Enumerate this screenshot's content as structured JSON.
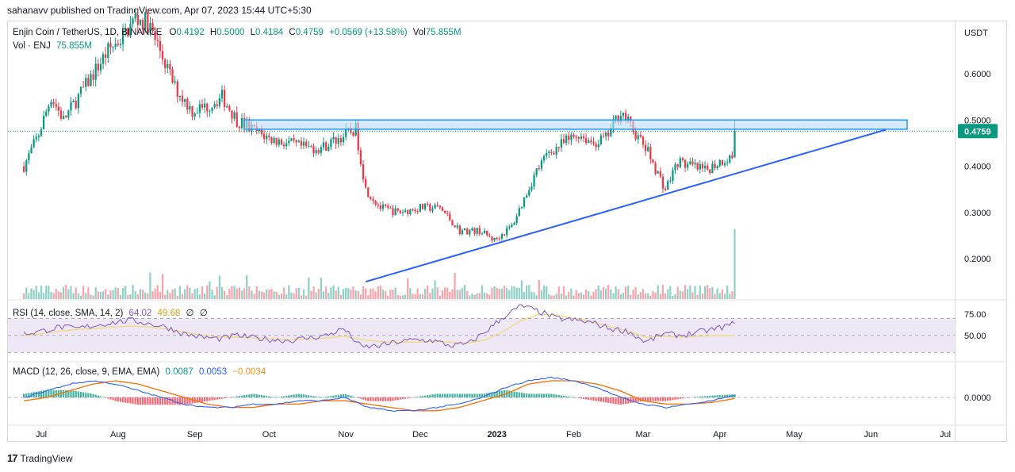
{
  "header": {
    "published": "sahanavv published on TradingView.com, Apr 07, 2023 15:44 UTC+5:30"
  },
  "legend": {
    "symbol": "Enjin Coin / TetherUS, 1D, BINANCE",
    "open_label": "O",
    "open": "0.4192",
    "high_label": "H",
    "high": "0.5000",
    "low_label": "L",
    "low": "0.4184",
    "close_label": "C",
    "close": "0.4759",
    "change": "+0.0569 (+13.58%)",
    "vol_label": "Vol",
    "vol": "75.855M",
    "vol_line_label": "Vol · ENJ",
    "vol_line_value": "75.855M"
  },
  "rsi_legend": {
    "label": "RSI (14, close, SMA, 14, 2)",
    "value": "64.02",
    "sma": "49.68",
    "extra1": "∅",
    "extra2": "∅"
  },
  "macd_legend": {
    "label": "MACD (12, 26, close, 9, EMA, EMA)",
    "hist": "0.0087",
    "macd": "0.0053",
    "signal": "−0.0034"
  },
  "axis": {
    "currency": "USDT",
    "last_price": "0.4759"
  },
  "brand": {
    "logo": "17",
    "name": "TradingView"
  },
  "colors": {
    "up": "#089981",
    "down": "#f23645",
    "resistance_fill": "#bbdefb",
    "resistance_stroke": "#2196f3",
    "trendline": "#2962ff",
    "rsi_line": "#7e57c2",
    "rsi_sma": "#f5d76e",
    "rsi_band": "#ede7f6",
    "macd_line": "#2962ff",
    "signal_line": "#ff6d00"
  },
  "chart_data": [
    {
      "type": "candlestick",
      "title": "Enjin Coin / TetherUS, 1D, BINANCE",
      "y_ticks": [
        "0.6000",
        "0.5000",
        "0.4000",
        "0.3000",
        "0.2000"
      ],
      "y_tick_values": [
        0.6,
        0.5,
        0.4,
        0.3,
        0.2
      ],
      "x_ticks": [
        "Jul",
        "Aug",
        "Sep",
        "Oct",
        "Nov",
        "Dec",
        "2023",
        "Feb",
        "Mar",
        "Apr",
        "May",
        "Jun",
        "Jul"
      ],
      "ylim": [
        0.1,
        0.7
      ],
      "close_path": [
        [
          "2022-06-24",
          0.4
        ],
        [
          "2022-06-30",
          0.47
        ],
        [
          "2022-07-05",
          0.55
        ],
        [
          "2022-07-10",
          0.5
        ],
        [
          "2022-07-16",
          0.55
        ],
        [
          "2022-07-22",
          0.6
        ],
        [
          "2022-07-28",
          0.65
        ],
        [
          "2022-08-03",
          0.68
        ],
        [
          "2022-08-08",
          0.72
        ],
        [
          "2022-08-13",
          0.71
        ],
        [
          "2022-08-18",
          0.65
        ],
        [
          "2022-08-24",
          0.57
        ],
        [
          "2022-08-31",
          0.52
        ],
        [
          "2022-09-06",
          0.53
        ],
        [
          "2022-09-12",
          0.55
        ],
        [
          "2022-09-18",
          0.5
        ],
        [
          "2022-09-24",
          0.48
        ],
        [
          "2022-10-01",
          0.46
        ],
        [
          "2022-10-08",
          0.45
        ],
        [
          "2022-10-15",
          0.44
        ],
        [
          "2022-10-22",
          0.44
        ],
        [
          "2022-10-29",
          0.46
        ],
        [
          "2022-11-05",
          0.48
        ],
        [
          "2022-11-09",
          0.35
        ],
        [
          "2022-11-15",
          0.31
        ],
        [
          "2022-11-22",
          0.3
        ],
        [
          "2022-12-01",
          0.31
        ],
        [
          "2022-12-09",
          0.31
        ],
        [
          "2022-12-17",
          0.26
        ],
        [
          "2022-12-25",
          0.26
        ],
        [
          "2022-12-31",
          0.24
        ],
        [
          "2023-01-07",
          0.27
        ],
        [
          "2023-01-12",
          0.33
        ],
        [
          "2023-01-17",
          0.39
        ],
        [
          "2023-01-22",
          0.43
        ],
        [
          "2023-01-28",
          0.45
        ],
        [
          "2023-02-03",
          0.47
        ],
        [
          "2023-02-09",
          0.45
        ],
        [
          "2023-02-14",
          0.46
        ],
        [
          "2023-02-20",
          0.52
        ],
        [
          "2023-02-26",
          0.47
        ],
        [
          "2023-03-03",
          0.43
        ],
        [
          "2023-03-10",
          0.35
        ],
        [
          "2023-03-15",
          0.41
        ],
        [
          "2023-03-20",
          0.4
        ],
        [
          "2023-03-26",
          0.39
        ],
        [
          "2023-04-01",
          0.41
        ],
        [
          "2023-04-06",
          0.42
        ],
        [
          "2023-04-07",
          0.4759
        ]
      ],
      "resistance_zone": {
        "from": 0.48,
        "to": 0.5
      },
      "trendline": {
        "start": [
          "2022-11-09",
          0.15
        ],
        "end": [
          "2023-06-07",
          0.479
        ]
      }
    },
    {
      "type": "line",
      "title": "RSI (14, close, SMA, 14, 2)",
      "y_ticks": [
        "75.00",
        "50.00"
      ],
      "series": [
        {
          "name": "RSI",
          "values": [
            52,
            55,
            60,
            58,
            62,
            65,
            68,
            64,
            60,
            52,
            48,
            46,
            50,
            47,
            45,
            44,
            47,
            50,
            58,
            36,
            38,
            42,
            45,
            44,
            38,
            40,
            55,
            72,
            85,
            78,
            70,
            68,
            65,
            58,
            55,
            42,
            52,
            50,
            54,
            58,
            64
          ]
        },
        {
          "name": "SMA",
          "values": [
            50,
            52,
            55,
            57,
            58,
            60,
            61,
            60,
            58,
            54,
            50,
            48,
            48,
            47,
            46,
            45,
            46,
            47,
            49,
            45,
            43,
            42,
            42,
            43,
            42,
            41,
            45,
            55,
            68,
            75,
            74,
            70,
            66,
            60,
            55,
            48,
            49,
            48,
            49,
            50,
            49.68
          ]
        }
      ]
    },
    {
      "type": "line",
      "title": "MACD (12, 26, close, 9, EMA, EMA)",
      "y_ticks": [
        "0.0000"
      ],
      "series": [
        {
          "name": "MACD",
          "values": [
            0.0,
            0.02,
            0.04,
            0.05,
            0.04,
            0.02,
            0.0,
            -0.02,
            -0.03,
            -0.03,
            -0.02,
            -0.02,
            -0.01,
            -0.01,
            0.0,
            -0.03,
            -0.04,
            -0.04,
            -0.03,
            -0.02,
            0.0,
            0.03,
            0.05,
            0.06,
            0.05,
            0.03,
            0.0,
            -0.02,
            -0.03,
            -0.02,
            -0.01,
            0.0053
          ]
        },
        {
          "name": "Signal",
          "values": [
            -0.01,
            0.0,
            0.02,
            0.04,
            0.05,
            0.04,
            0.02,
            0.0,
            -0.02,
            -0.03,
            -0.03,
            -0.02,
            -0.02,
            -0.01,
            -0.01,
            -0.02,
            -0.03,
            -0.04,
            -0.04,
            -0.03,
            -0.01,
            0.01,
            0.04,
            0.05,
            0.05,
            0.04,
            0.02,
            -0.01,
            -0.02,
            -0.02,
            -0.015,
            -0.0034
          ]
        }
      ]
    }
  ]
}
